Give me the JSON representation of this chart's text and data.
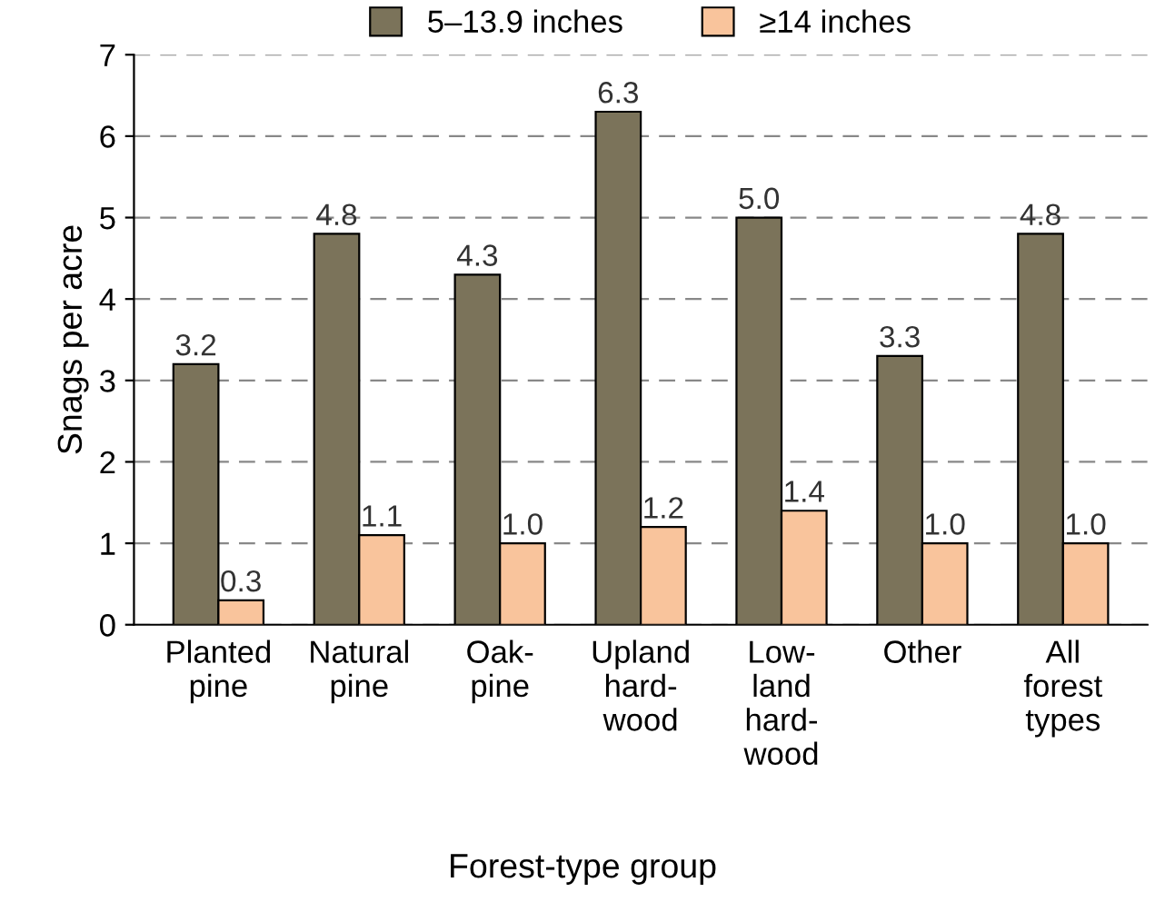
{
  "chart_data": {
    "type": "bar",
    "xlabel": "Forest-type group",
    "ylabel": "Snags per acre",
    "categories": [
      "Planted\npine",
      "Natural\npine",
      "Oak-\npine",
      "Upland\nhard-\nwood",
      "Low-\nland\nhard-\nwood",
      "Other",
      "All\nforest\ntypes"
    ],
    "series": [
      {
        "name": "5–13.9 inches",
        "color": "#7b735a",
        "values": [
          3.2,
          4.8,
          4.3,
          6.3,
          5.0,
          3.3,
          4.8
        ],
        "value_labels": [
          "3.2",
          "4.8",
          "4.3",
          "6.3",
          "5.0",
          "3.3",
          "4.8"
        ]
      },
      {
        "name": "≥14 inches",
        "color": "#f9c49c",
        "values": [
          0.3,
          1.1,
          1.0,
          1.2,
          1.4,
          1.0,
          1.0
        ],
        "value_labels": [
          "0.3",
          "1.1",
          "1.0",
          "1.2",
          "1.4",
          "1.0",
          "1.0"
        ]
      }
    ],
    "ylim": [
      0,
      7
    ],
    "yticks": [
      0,
      1,
      2,
      3,
      4,
      5,
      6,
      7
    ],
    "grid": "y",
    "legend": "top"
  }
}
